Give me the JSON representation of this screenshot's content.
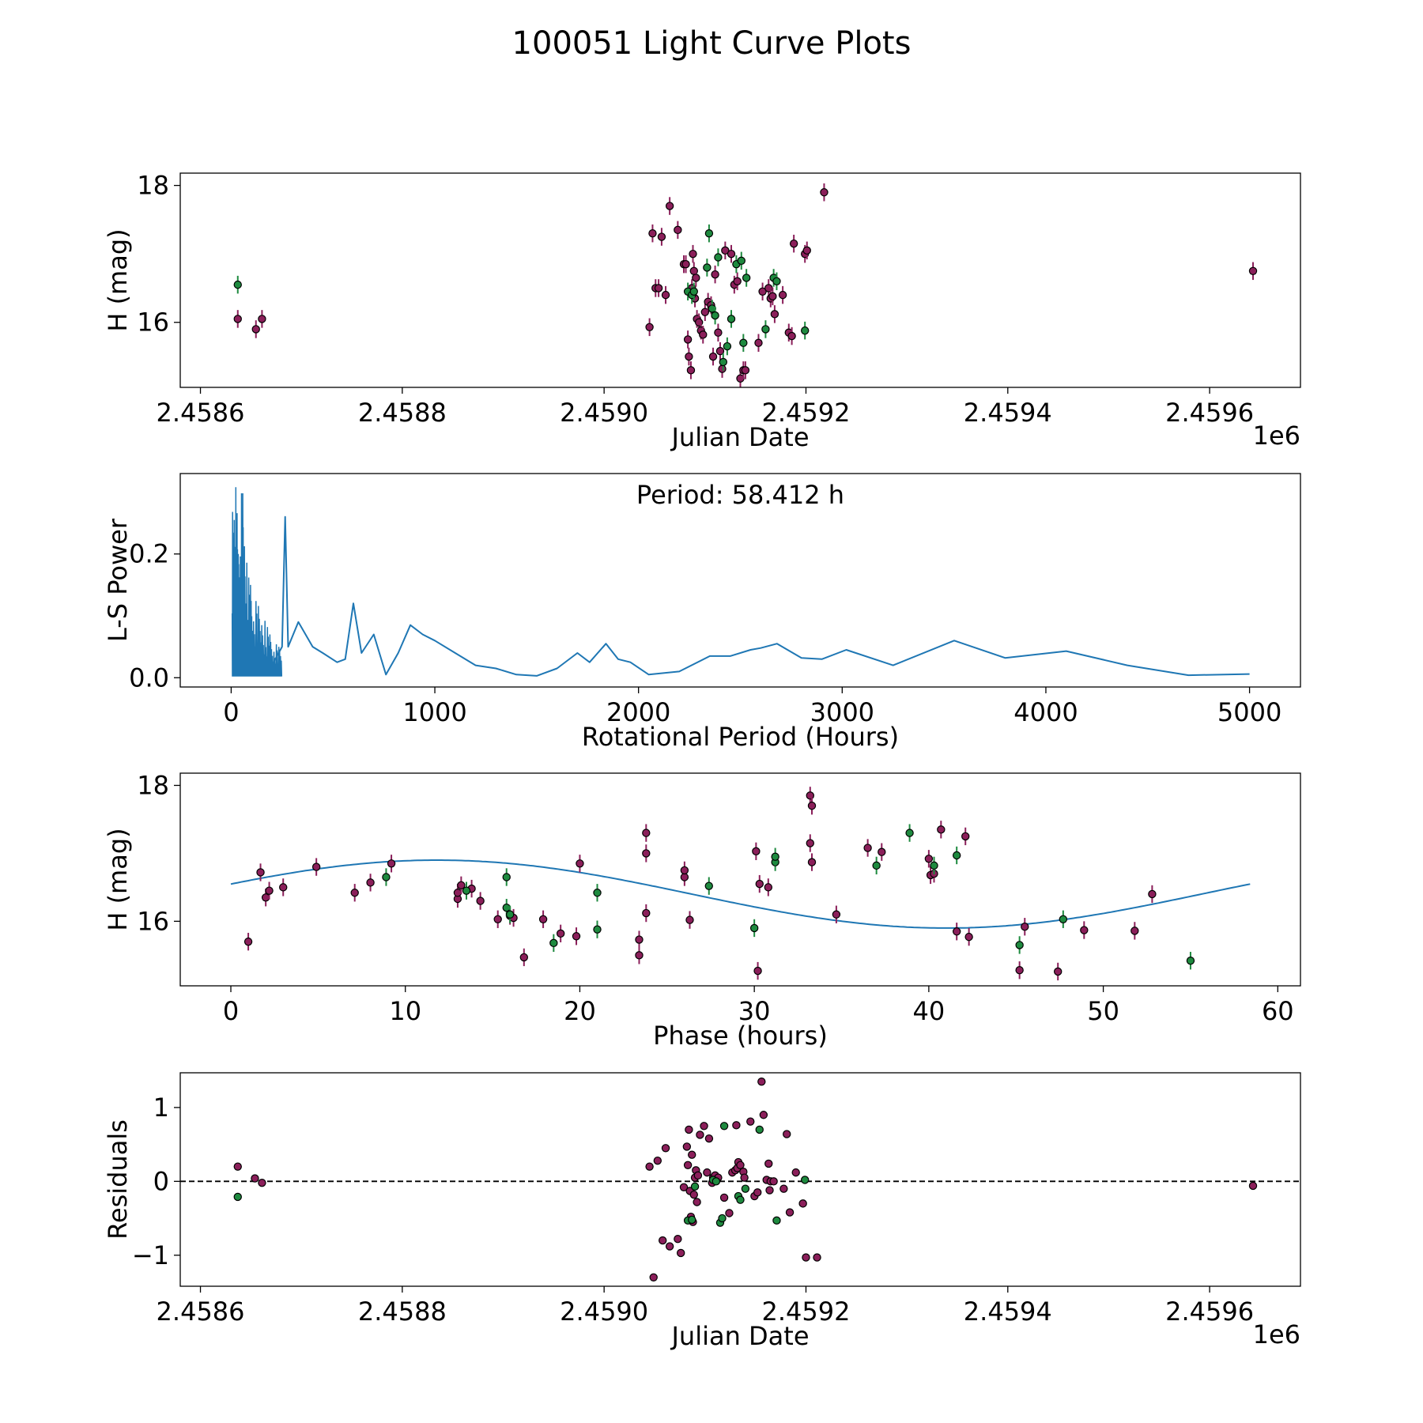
{
  "figure_title": "100051 Light Curve Plots",
  "colors": {
    "purple_points": "#8b1f5a",
    "green_points": "#1e8a3f",
    "periodogram_line": "#1f77b4",
    "fit_curve": "#1f77b4",
    "zero_line": "#000000"
  },
  "chart_data": [
    {
      "id": "light_curve",
      "type": "scatter",
      "title": "",
      "xlabel": "Julian Date",
      "ylabel": "H (mag)",
      "x_offset_label": "1e6",
      "xlim": [
        2.45858,
        2.45969
      ],
      "ylim": [
        15.05,
        18.18
      ],
      "x_ticks": [
        2.4586,
        2.4588,
        2.459,
        2.4592,
        2.4594,
        2.4596
      ],
      "x_tick_labels": [
        "2.4586",
        "2.4588",
        "2.4590",
        "2.4592",
        "2.4594",
        "2.4596"
      ],
      "y_ticks": [
        16,
        18
      ],
      "y_tick_labels": [
        "16",
        "18"
      ],
      "error": 0.13,
      "series": [
        {
          "name": "purple",
          "x": [
            2.458637,
            2.458655,
            2.458661,
            2.459045,
            2.459048,
            2.459051,
            2.459054,
            2.459057,
            2.459061,
            2.459065,
            2.459073,
            2.459079,
            2.459081,
            2.459083,
            2.459084,
            2.459086,
            2.459087,
            2.459088,
            2.459089,
            2.45909,
            2.459091,
            2.459092,
            2.459094,
            2.459096,
            2.459098,
            2.4591,
            2.459103,
            2.459106,
            2.459108,
            2.45911,
            2.459113,
            2.459115,
            2.459117,
            2.45912,
            2.459126,
            2.459129,
            2.459132,
            2.459135,
            2.459138,
            2.45914,
            2.459153,
            2.459157,
            2.459163,
            2.459165,
            2.459167,
            2.459169,
            2.459177,
            2.459183,
            2.459186,
            2.459188,
            2.459199,
            2.459201,
            2.459218,
            2.459643
          ],
          "y": [
            16.05,
            15.9,
            16.05,
            15.93,
            17.3,
            16.5,
            16.5,
            17.25,
            16.4,
            17.7,
            17.35,
            16.85,
            16.85,
            15.75,
            15.5,
            15.3,
            16.5,
            17.0,
            16.75,
            16.35,
            16.65,
            16.05,
            16.0,
            15.88,
            15.82,
            16.15,
            16.3,
            16.25,
            15.5,
            16.7,
            15.85,
            15.58,
            15.32,
            17.05,
            17.0,
            16.55,
            16.6,
            15.18,
            15.3,
            15.3,
            15.7,
            16.45,
            16.5,
            16.35,
            16.38,
            16.12,
            16.4,
            15.85,
            15.8,
            17.15,
            17.0,
            17.05,
            17.9,
            16.75
          ]
        },
        {
          "name": "green",
          "x": [
            2.458637,
            2.459083,
            2.459087,
            2.459089,
            2.459102,
            2.459104,
            2.459107,
            2.45911,
            2.459113,
            2.459118,
            2.459122,
            2.459126,
            2.459131,
            2.459136,
            2.459138,
            2.459141,
            2.45916,
            2.459168,
            2.459171,
            2.459199
          ],
          "y": [
            16.55,
            16.45,
            16.4,
            16.45,
            16.8,
            17.3,
            16.2,
            16.1,
            16.95,
            15.42,
            15.65,
            16.05,
            16.85,
            16.9,
            15.7,
            16.65,
            15.9,
            16.65,
            16.6,
            15.88
          ]
        }
      ]
    },
    {
      "id": "periodogram",
      "type": "line",
      "title": "",
      "xlabel": "Rotational Period (Hours)",
      "ylabel": "L-S Power",
      "annotation": "Period: 58.412 h",
      "xlim": [
        -250,
        5250
      ],
      "ylim": [
        -0.015,
        0.33
      ],
      "x_ticks": [
        0,
        1000,
        2000,
        3000,
        4000,
        5000
      ],
      "x_tick_labels": [
        "0",
        "1000",
        "2000",
        "3000",
        "4000",
        "5000"
      ],
      "y_ticks": [
        0.0,
        0.2
      ],
      "y_tick_labels": [
        "0.0",
        "0.2"
      ],
      "smooth_envelope": [
        [
          200,
          0.02
        ],
        [
          250,
          0.05
        ],
        [
          265,
          0.26
        ],
        [
          280,
          0.05
        ],
        [
          330,
          0.09
        ],
        [
          400,
          0.05
        ],
        [
          450,
          0.04
        ],
        [
          520,
          0.025
        ],
        [
          560,
          0.03
        ],
        [
          600,
          0.12
        ],
        [
          640,
          0.04
        ],
        [
          700,
          0.07
        ],
        [
          760,
          0.005
        ],
        [
          820,
          0.04
        ],
        [
          880,
          0.085
        ],
        [
          940,
          0.07
        ],
        [
          1000,
          0.06
        ],
        [
          1100,
          0.04
        ],
        [
          1200,
          0.02
        ],
        [
          1300,
          0.015
        ],
        [
          1400,
          0.005
        ],
        [
          1500,
          0.003
        ],
        [
          1600,
          0.015
        ],
        [
          1700,
          0.04
        ],
        [
          1760,
          0.025
        ],
        [
          1840,
          0.055
        ],
        [
          1900,
          0.03
        ],
        [
          1960,
          0.025
        ],
        [
          2050,
          0.005
        ],
        [
          2200,
          0.01
        ],
        [
          2350,
          0.035
        ],
        [
          2450,
          0.035
        ],
        [
          2550,
          0.045
        ],
        [
          2600,
          0.048
        ],
        [
          2680,
          0.055
        ],
        [
          2800,
          0.032
        ],
        [
          2900,
          0.03
        ],
        [
          3020,
          0.045
        ],
        [
          3250,
          0.02
        ],
        [
          3550,
          0.06
        ],
        [
          3800,
          0.032
        ],
        [
          4100,
          0.043
        ],
        [
          4400,
          0.02
        ],
        [
          4700,
          0.004
        ],
        [
          5000,
          0.006
        ]
      ],
      "dense_region": [
        0,
        260
      ],
      "dense_peaks": [
        [
          5,
          0.26
        ],
        [
          15,
          0.3
        ],
        [
          25,
          0.31
        ],
        [
          35,
          0.2
        ],
        [
          45,
          0.28
        ],
        [
          55,
          0.31
        ],
        [
          65,
          0.25
        ],
        [
          80,
          0.17
        ],
        [
          95,
          0.15
        ],
        [
          110,
          0.13
        ],
        [
          130,
          0.12
        ],
        [
          150,
          0.1
        ],
        [
          170,
          0.09
        ],
        [
          190,
          0.07
        ],
        [
          210,
          0.06
        ],
        [
          230,
          0.05
        ],
        [
          250,
          0.05
        ]
      ]
    },
    {
      "id": "phase_folded",
      "type": "scatter",
      "title": "",
      "xlabel": "Phase (hours)",
      "ylabel": "H (mag)",
      "xlim": [
        -2.9,
        61.3
      ],
      "ylim": [
        15.05,
        18.18
      ],
      "x_ticks": [
        0,
        10,
        20,
        30,
        40,
        50,
        60
      ],
      "x_tick_labels": [
        "0",
        "10",
        "20",
        "30",
        "40",
        "50",
        "60"
      ],
      "y_ticks": [
        16,
        18
      ],
      "y_tick_labels": [
        "16",
        "18"
      ],
      "error": 0.13,
      "fit": {
        "period": 58.412,
        "mean": 16.4,
        "amplitude": 0.5,
        "phase_shift": 0.3
      },
      "series": [
        {
          "name": "purple",
          "x": [
            1.0,
            1.7,
            2.0,
            2.2,
            3.0,
            4.9,
            7.1,
            8.0,
            9.2,
            13.0,
            13.0,
            13.2,
            13.8,
            14.3,
            15.3,
            16.0,
            16.2,
            16.8,
            17.9,
            18.9,
            19.8,
            20.0,
            23.4,
            23.4,
            23.8,
            23.8,
            23.8,
            26.0,
            26.0,
            26.3,
            30.1,
            30.2,
            30.3,
            30.8,
            33.2,
            33.2,
            33.3,
            33.3,
            34.7,
            36.5,
            37.3,
            40.0,
            40.1,
            40.3,
            40.7,
            41.6,
            42.1,
            42.3,
            45.2,
            45.5,
            47.4,
            48.9,
            51.8,
            52.8
          ],
          "y": [
            15.7,
            16.72,
            16.35,
            16.45,
            16.5,
            16.8,
            16.42,
            16.57,
            16.85,
            16.33,
            16.42,
            16.53,
            16.48,
            16.3,
            16.03,
            16.08,
            16.05,
            15.47,
            16.03,
            15.82,
            15.78,
            16.85,
            15.5,
            15.73,
            17.0,
            17.3,
            16.12,
            16.65,
            16.75,
            16.02,
            17.03,
            15.27,
            16.55,
            16.5,
            17.85,
            17.15,
            17.7,
            16.87,
            16.1,
            17.08,
            17.02,
            16.92,
            16.68,
            16.7,
            17.35,
            15.85,
            17.25,
            15.77,
            15.28,
            15.92,
            15.26,
            15.87,
            15.86,
            16.4
          ]
        },
        {
          "name": "green",
          "x": [
            8.9,
            13.5,
            15.8,
            15.8,
            16.0,
            18.5,
            21.0,
            21.0,
            27.4,
            30.0,
            31.2,
            31.2,
            37.0,
            38.9,
            40.3,
            41.6,
            45.2,
            47.7,
            55.0
          ],
          "y": [
            16.65,
            16.45,
            16.65,
            16.2,
            16.1,
            15.68,
            16.42,
            15.88,
            16.52,
            15.9,
            16.87,
            16.95,
            16.82,
            17.3,
            16.82,
            16.97,
            15.65,
            16.03,
            15.42
          ]
        }
      ]
    },
    {
      "id": "residuals",
      "type": "scatter",
      "title": "",
      "xlabel": "Julian Date",
      "ylabel": "Residuals",
      "x_offset_label": "1e6",
      "xlim": [
        2.45858,
        2.45969
      ],
      "ylim": [
        -1.42,
        1.47
      ],
      "x_ticks": [
        2.4586,
        2.4588,
        2.459,
        2.4592,
        2.4594,
        2.4596
      ],
      "x_tick_labels": [
        "2.4586",
        "2.4588",
        "2.4590",
        "2.4592",
        "2.4594",
        "2.4596"
      ],
      "y_ticks": [
        -1,
        0,
        1
      ],
      "y_tick_labels": [
        "−1",
        "0",
        "1"
      ],
      "zero_line": 0,
      "series": [
        {
          "name": "purple",
          "x": [
            2.458637,
            2.458654,
            2.458661,
            2.459045,
            2.459049,
            2.459053,
            2.459058,
            2.459061,
            2.459065,
            2.459073,
            2.459076,
            2.459079,
            2.459082,
            2.459083,
            2.459084,
            2.459085,
            2.459086,
            2.459087,
            2.459088,
            2.459089,
            2.45909,
            2.459091,
            2.459092,
            2.459093,
            2.459095,
            2.459099,
            2.459102,
            2.459104,
            2.459107,
            2.459108,
            2.45911,
            2.459113,
            2.459119,
            2.459124,
            2.459127,
            2.45913,
            2.459131,
            2.459132,
            2.459133,
            2.459135,
            2.459138,
            2.459139,
            2.459145,
            2.459149,
            2.459152,
            2.459156,
            2.459158,
            2.459161,
            2.459163,
            2.459164,
            2.459165,
            2.459168,
            2.459178,
            2.459181,
            2.459184,
            2.45919,
            2.459197,
            2.4592,
            2.459211,
            2.459643
          ],
          "y": [
            0.2,
            0.04,
            -0.02,
            0.2,
            -1.3,
            0.28,
            -0.8,
            0.45,
            -0.88,
            -0.78,
            -0.97,
            -0.08,
            0.47,
            0.22,
            0.7,
            -0.13,
            -0.48,
            0.36,
            -0.55,
            -0.18,
            0.05,
            0.15,
            -0.28,
            0.08,
            0.63,
            0.75,
            0.12,
            0.58,
            -0.02,
            0.05,
            0.08,
            0.05,
            -0.22,
            -0.43,
            0.12,
            0.15,
            0.76,
            0.18,
            0.26,
            0.22,
            0.13,
            0.05,
            0.81,
            -0.2,
            -0.15,
            1.35,
            0.9,
            0.02,
            0.24,
            -0.12,
            0.0,
            0.0,
            -0.1,
            0.64,
            -0.42,
            0.12,
            -0.3,
            -1.03,
            -1.03,
            -0.06
          ]
        },
        {
          "name": "green",
          "x": [
            2.458637,
            2.459083,
            2.459087,
            2.45909,
            2.459108,
            2.459111,
            2.459115,
            2.459117,
            2.459119,
            2.459133,
            2.459135,
            2.45914,
            2.459154,
            2.459171,
            2.459199
          ],
          "y": [
            -0.21,
            -0.53,
            -0.52,
            -0.07,
            0.02,
            0.0,
            -0.56,
            -0.5,
            0.75,
            -0.2,
            -0.25,
            -0.1,
            0.7,
            -0.53,
            0.02
          ]
        }
      ]
    }
  ]
}
